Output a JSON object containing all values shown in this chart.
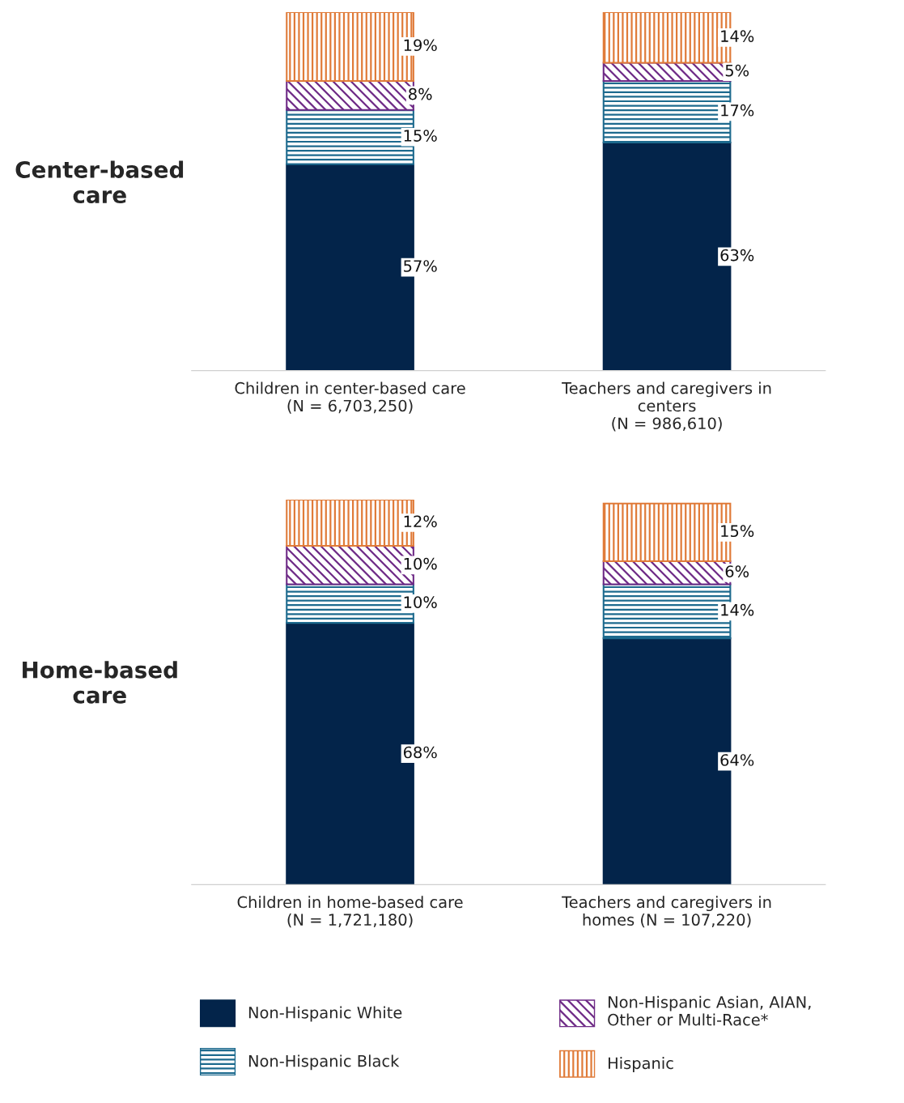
{
  "chart_data": [
    {
      "type": "bar",
      "stacked": true,
      "ylabel": "Center-based care",
      "categories": [
        "Children in center-based care\n(N = 6,703,250)",
        "Teachers and caregivers in\ncenters\n(N = 986,610)"
      ],
      "legend": "bottom",
      "grid": false,
      "series": [
        {
          "name": "Non-Hispanic White",
          "color": "#03244a",
          "values": [
            57,
            63
          ],
          "value_labels": [
            "57%",
            "63%"
          ]
        },
        {
          "name": "Non-Hispanic Black",
          "color": "#1d6a8e",
          "values": [
            15,
            17
          ],
          "value_labels": [
            "15%",
            "17%"
          ]
        },
        {
          "name": "Non-Hispanic Asian, AIAN,\nOther or Multi-Race*",
          "color": "#6e2a86",
          "values": [
            8,
            5
          ],
          "value_labels": [
            "8%",
            "5%"
          ]
        },
        {
          "name": "Hispanic",
          "color": "#e07b39",
          "values": [
            19,
            14
          ],
          "value_labels": [
            "19%",
            "14%"
          ]
        }
      ]
    },
    {
      "type": "bar",
      "stacked": true,
      "ylabel": "Home-based care",
      "categories": [
        "Children in home-based care\n(N = 1,721,180)",
        "Teachers and caregivers in\nhomes (N = 107,220)"
      ],
      "grid": false,
      "series": [
        {
          "color": "#03244a",
          "values": [
            68,
            64
          ],
          "value_labels": [
            "68%",
            "64%"
          ]
        },
        {
          "color": "#1d6a8e",
          "values": [
            10,
            14
          ],
          "value_labels": [
            "10%",
            "14%"
          ]
        },
        {
          "color": "#6e2a86",
          "values": [
            10,
            6
          ],
          "value_labels": [
            "10%",
            "6%"
          ]
        },
        {
          "color": "#e07b39",
          "values": [
            12,
            15
          ],
          "value_labels": [
            "12%",
            "15%"
          ]
        }
      ]
    }
  ]
}
